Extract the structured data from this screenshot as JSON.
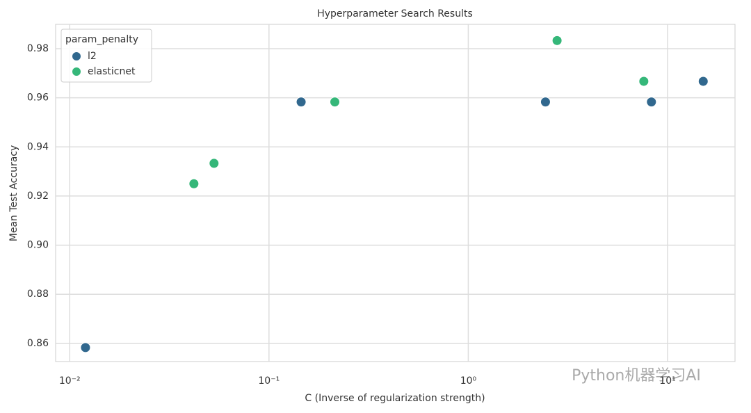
{
  "chart_data": {
    "type": "scatter",
    "title": "Hyperparameter Search Results",
    "x_label": "C (Inverse of regularization strength)",
    "y_label": "Mean Test Accuracy",
    "xscale": "log",
    "xlim": [
      0.0085,
      21.8
    ],
    "ylim": [
      0.8526,
      0.9899
    ],
    "xticks": [
      {
        "value": 0.01,
        "label": "10⁻²"
      },
      {
        "value": 0.1,
        "label": "10⁻¹"
      },
      {
        "value": 1,
        "label": "10⁰"
      },
      {
        "value": 10,
        "label": "10¹"
      }
    ],
    "yticks": [
      {
        "value": 0.86,
        "label": "0.86"
      },
      {
        "value": 0.88,
        "label": "0.88"
      },
      {
        "value": 0.9,
        "label": "0.90"
      },
      {
        "value": 0.92,
        "label": "0.92"
      },
      {
        "value": 0.94,
        "label": "0.94"
      },
      {
        "value": 0.96,
        "label": "0.96"
      },
      {
        "value": 0.98,
        "label": "0.98"
      }
    ],
    "grid": true,
    "legend_title": "param_penalty",
    "legend_position": "upper-left",
    "series": [
      {
        "name": "l2",
        "color": "#31688e",
        "x": [
          0.012,
          0.145,
          2.44,
          8.3,
          15.1
        ],
        "values": [
          0.8583,
          0.9583,
          0.9583,
          0.9583,
          0.9667
        ]
      },
      {
        "name": "elasticnet",
        "color": "#35b779",
        "x": [
          0.042,
          0.053,
          0.214,
          2.79,
          7.6
        ],
        "values": [
          0.925,
          0.9333,
          0.9583,
          0.9833,
          0.9667
        ]
      }
    ],
    "watermark": "Python机器学习AI"
  }
}
